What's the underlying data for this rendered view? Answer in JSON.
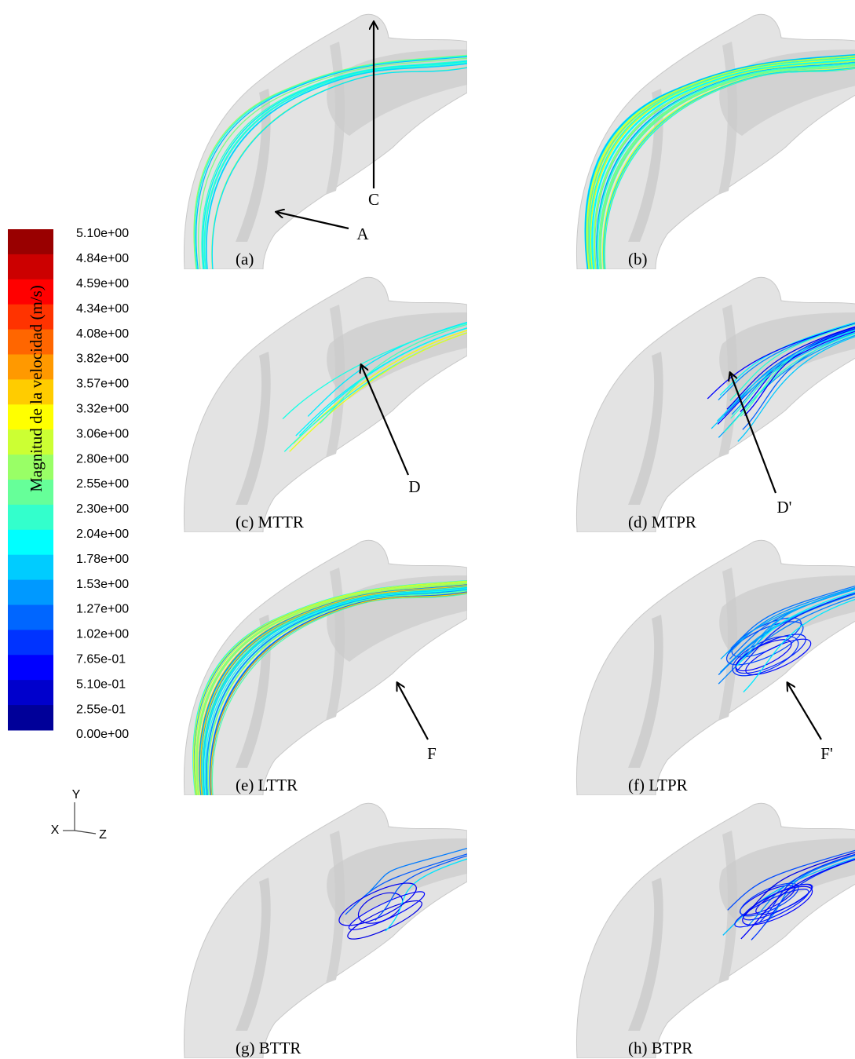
{
  "colorbar": {
    "title": "Magnitud de la velocidad (m/s)",
    "labels": [
      "5.10e+00",
      "4.84e+00",
      "4.59e+00",
      "4.34e+00",
      "4.08e+00",
      "3.82e+00",
      "3.57e+00",
      "3.32e+00",
      "3.06e+00",
      "2.80e+00",
      "2.55e+00",
      "2.30e+00",
      "2.04e+00",
      "1.78e+00",
      "1.53e+00",
      "1.27e+00",
      "1.02e+00",
      "7.65e-01",
      "5.10e-01",
      "2.55e-01",
      "0.00e+00"
    ]
  },
  "panels": [
    {
      "label": "(a)"
    },
    {
      "label": "(b)"
    },
    {
      "label": "(c) MTTR"
    },
    {
      "label": "(d) MTPR"
    },
    {
      "label": "(e) LTTR"
    },
    {
      "label": "(f) LTPR"
    },
    {
      "label": "(g) BTTR"
    },
    {
      "label": "(h) BTPR"
    }
  ],
  "annotations": [
    {
      "label": "A"
    },
    {
      "label": "C"
    },
    {
      "label": "D"
    },
    {
      "label": "D'"
    },
    {
      "label": "F"
    },
    {
      "label": "F'"
    }
  ],
  "axes": {
    "y": "Y",
    "x": "X",
    "z": "Z"
  }
}
